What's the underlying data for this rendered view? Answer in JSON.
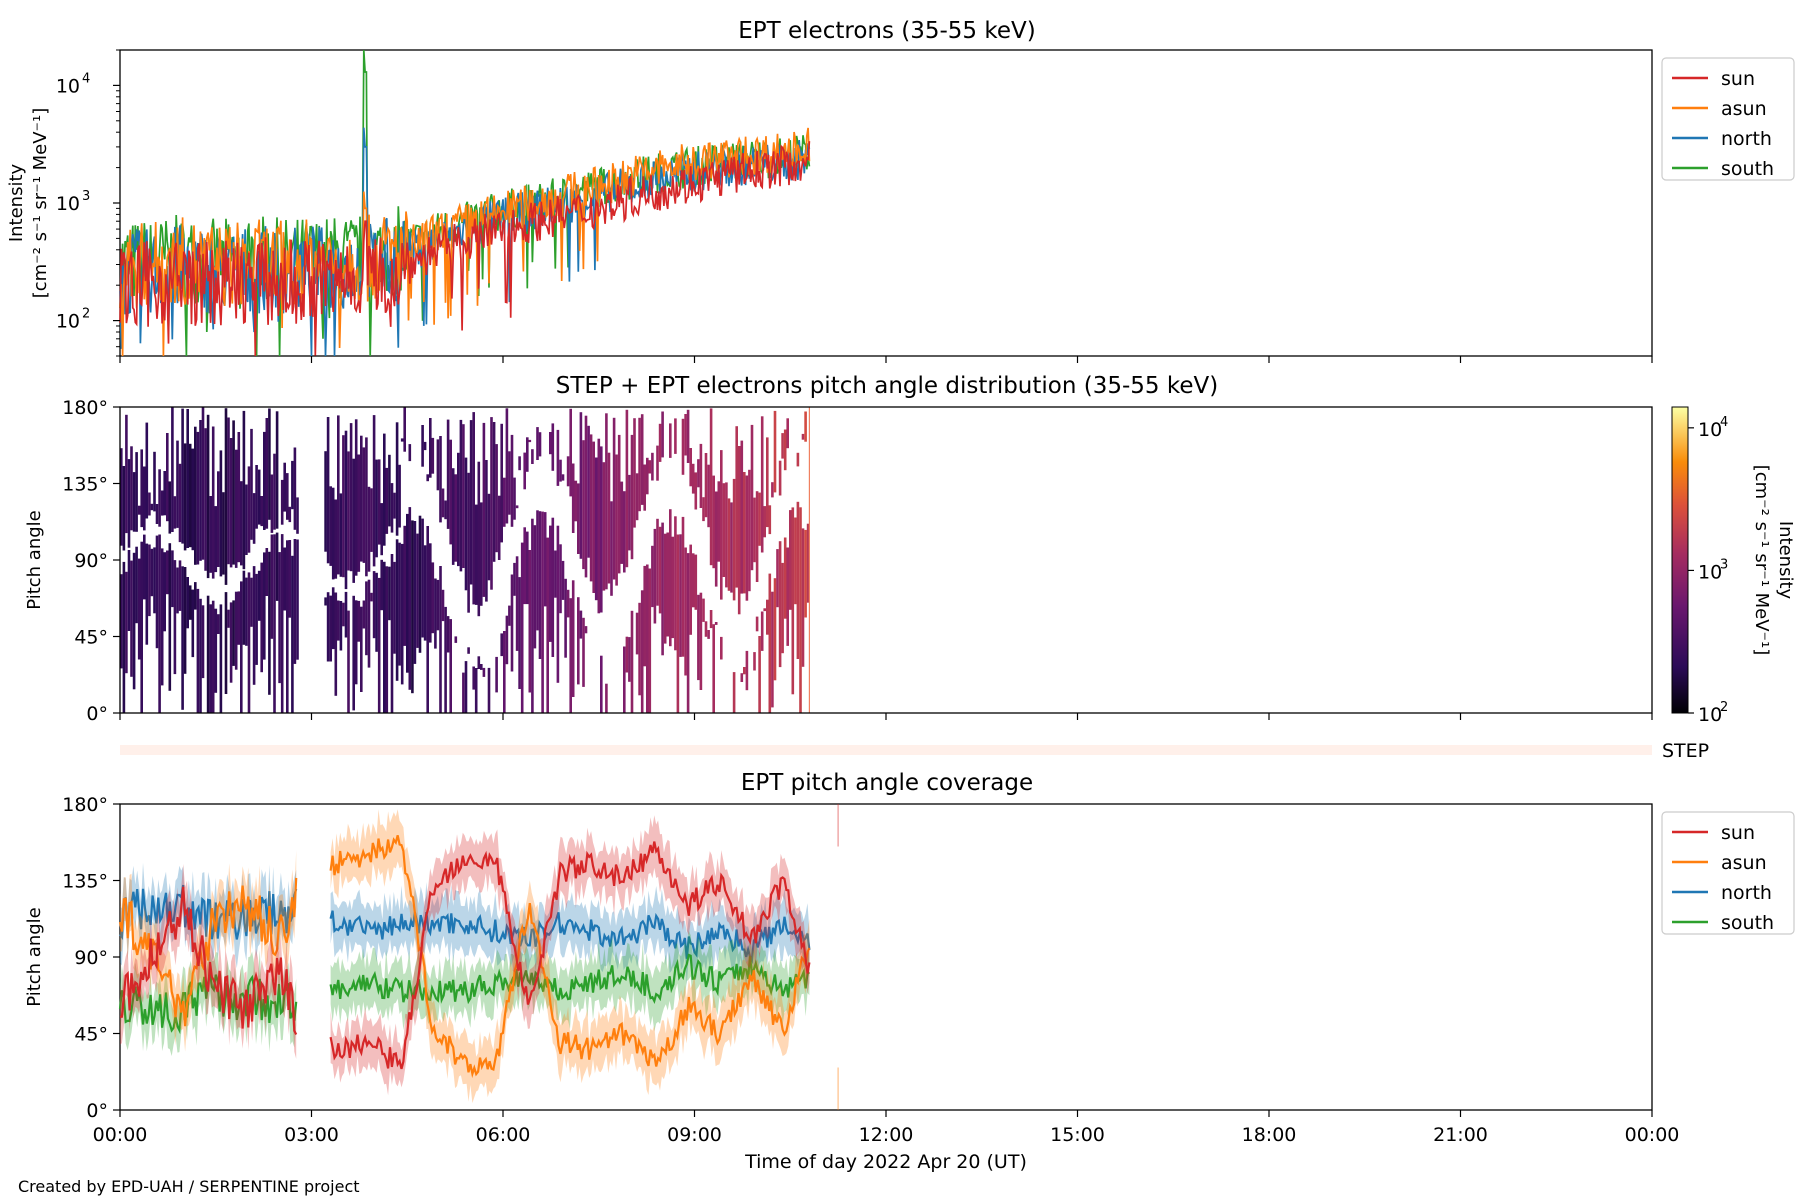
{
  "figure": {
    "xlabel": "Time of day 2022 Apr 20 (UT)",
    "xticks": [
      "00:00",
      "03:00",
      "06:00",
      "09:00",
      "12:00",
      "15:00",
      "18:00",
      "21:00",
      "00:00"
    ],
    "credit": "Created by EPD-UAH / SERPENTINE project",
    "series_colors": {
      "sun": "#d62728",
      "asun": "#ff7f0e",
      "north": "#1f77b4",
      "south": "#2ca02c"
    }
  },
  "panel1": {
    "title": "EPT electrons (35-55 keV)",
    "ylabel_line1": "Intensity",
    "ylabel_line2": "[cm⁻² s⁻¹ sr⁻¹ MeV⁻¹]",
    "yticks": [
      {
        "base": "10",
        "exp": "2"
      },
      {
        "base": "10",
        "exp": "3"
      },
      {
        "base": "10",
        "exp": "4"
      }
    ],
    "legend": [
      "sun",
      "asun",
      "north",
      "south"
    ]
  },
  "panel2": {
    "title": "STEP + EPT electrons pitch angle distribution (35-55 keV)",
    "ylabel": "Pitch angle",
    "yticks": [
      "0°",
      "45°",
      "90°",
      "135°",
      "180°"
    ],
    "colorbar_label_line1": "Intensity",
    "colorbar_label_line2": "[cm⁻² s⁻¹ sr⁻¹ MeV⁻¹]",
    "colorbar_ticks": [
      {
        "base": "10",
        "exp": "2"
      },
      {
        "base": "10",
        "exp": "3"
      },
      {
        "base": "10",
        "exp": "4"
      }
    ]
  },
  "step_strip": {
    "label": "STEP"
  },
  "panel3": {
    "title": "EPT pitch angle coverage",
    "ylabel": "Pitch angle",
    "yticks": [
      "0°",
      "45°",
      "90°",
      "135°",
      "180°"
    ],
    "legend": [
      "sun",
      "asun",
      "north",
      "south"
    ]
  },
  "chart_data": [
    {
      "type": "line",
      "title": "EPT electrons (35-55 keV)",
      "ylabel": "Intensity [cm⁻² s⁻¹ sr⁻¹ MeV⁻¹]",
      "xlabel": "",
      "yscale": "log",
      "ylim": [
        50,
        20000
      ],
      "xlim_hours": [
        0,
        24
      ],
      "x_hours": [
        0,
        0.5,
        1,
        1.5,
        2,
        2.5,
        3,
        3.5,
        3.85,
        4,
        4.5,
        5,
        5.5,
        6,
        6.5,
        7,
        7.5,
        8,
        8.5,
        9,
        9.5,
        10,
        10.5,
        10.8
      ],
      "series": [
        {
          "name": "sun",
          "values": [
            200,
            220,
            230,
            210,
            240,
            220,
            230,
            250,
            700,
            260,
            300,
            400,
            500,
            600,
            700,
            800,
            900,
            1100,
            1300,
            1500,
            1700,
            1900,
            2100,
            2300
          ]
        },
        {
          "name": "asun",
          "values": [
            300,
            320,
            340,
            310,
            330,
            320,
            330,
            340,
            900,
            360,
            420,
            560,
            700,
            850,
            1000,
            1200,
            1400,
            1700,
            2000,
            2200,
            2400,
            2600,
            2800,
            3000
          ]
        },
        {
          "name": "north",
          "values": [
            260,
            280,
            300,
            280,
            290,
            280,
            290,
            300,
            3000,
            320,
            380,
            480,
            620,
            760,
            880,
            1000,
            1150,
            1400,
            1650,
            1850,
            2000,
            2150,
            2250,
            2400
          ]
        },
        {
          "name": "south",
          "values": [
            320,
            340,
            360,
            330,
            350,
            340,
            350,
            360,
            13000,
            380,
            440,
            580,
            720,
            860,
            1000,
            1150,
            1350,
            1600,
            1850,
            2050,
            2250,
            2400,
            2500,
            2700
          ]
        }
      ]
    },
    {
      "type": "heatmap",
      "title": "STEP + EPT electrons pitch angle distribution (35-55 keV)",
      "ylabel": "Pitch angle",
      "ylim": [
        0,
        180
      ],
      "colorbar_range": [
        100,
        14000
      ],
      "colorbar_scale": "log",
      "x_hours": [
        0,
        0.5,
        1,
        1.5,
        2,
        2.5,
        3.5,
        4,
        4.5,
        5,
        5.5,
        6,
        6.5,
        7,
        7.5,
        8,
        8.5,
        9,
        9.5,
        10,
        10.5,
        10.8
      ],
      "values": [
        220,
        240,
        230,
        220,
        240,
        230,
        260,
        280,
        220,
        280,
        320,
        400,
        500,
        600,
        700,
        850,
        1000,
        1200,
        1400,
        1600,
        1800,
        2000
      ]
    },
    {
      "type": "line",
      "title": "EPT pitch angle coverage",
      "ylabel": "Pitch angle",
      "ylim": [
        0,
        180
      ],
      "xlim_hours": [
        0,
        24
      ],
      "x_hours": [
        0,
        0.5,
        1,
        1.5,
        2,
        2.5,
        2.75,
        3.4,
        3.9,
        4.4,
        4.9,
        5.4,
        5.9,
        6.4,
        6.9,
        7.4,
        7.9,
        8.4,
        8.9,
        9.4,
        9.9,
        10.4,
        10.8
      ],
      "series": [
        {
          "name": "sun",
          "values": [
            60,
            90,
            120,
            70,
            60,
            80,
            55,
            35,
            40,
            25,
            130,
            150,
            145,
            60,
            140,
            145,
            135,
            155,
            120,
            135,
            100,
            135,
            80
          ]
        },
        {
          "name": "asun",
          "values": [
            120,
            90,
            60,
            115,
            120,
            100,
            125,
            145,
            150,
            160,
            50,
            25,
            30,
            120,
            40,
            35,
            45,
            25,
            60,
            45,
            80,
            45,
            100
          ]
        },
        {
          "name": "north",
          "values": [
            115,
            120,
            120,
            110,
            115,
            115,
            120,
            110,
            105,
            110,
            110,
            110,
            105,
            100,
            110,
            105,
            100,
            110,
            95,
            105,
            95,
            110,
            100
          ]
        },
        {
          "name": "south",
          "values": [
            65,
            60,
            60,
            70,
            65,
            65,
            60,
            70,
            75,
            70,
            70,
            70,
            75,
            80,
            70,
            75,
            80,
            70,
            85,
            75,
            85,
            70,
            80
          ]
        }
      ]
    }
  ]
}
